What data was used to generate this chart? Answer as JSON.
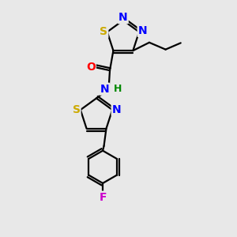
{
  "bg_color": "#e8e8e8",
  "bond_color": "#000000",
  "bond_width": 1.6,
  "atom_colors": {
    "N": "#0000ff",
    "S": "#ccaa00",
    "O": "#ff0000",
    "F": "#cc00cc",
    "C": "#000000",
    "H": "#008800"
  },
  "font_size_atom": 10
}
